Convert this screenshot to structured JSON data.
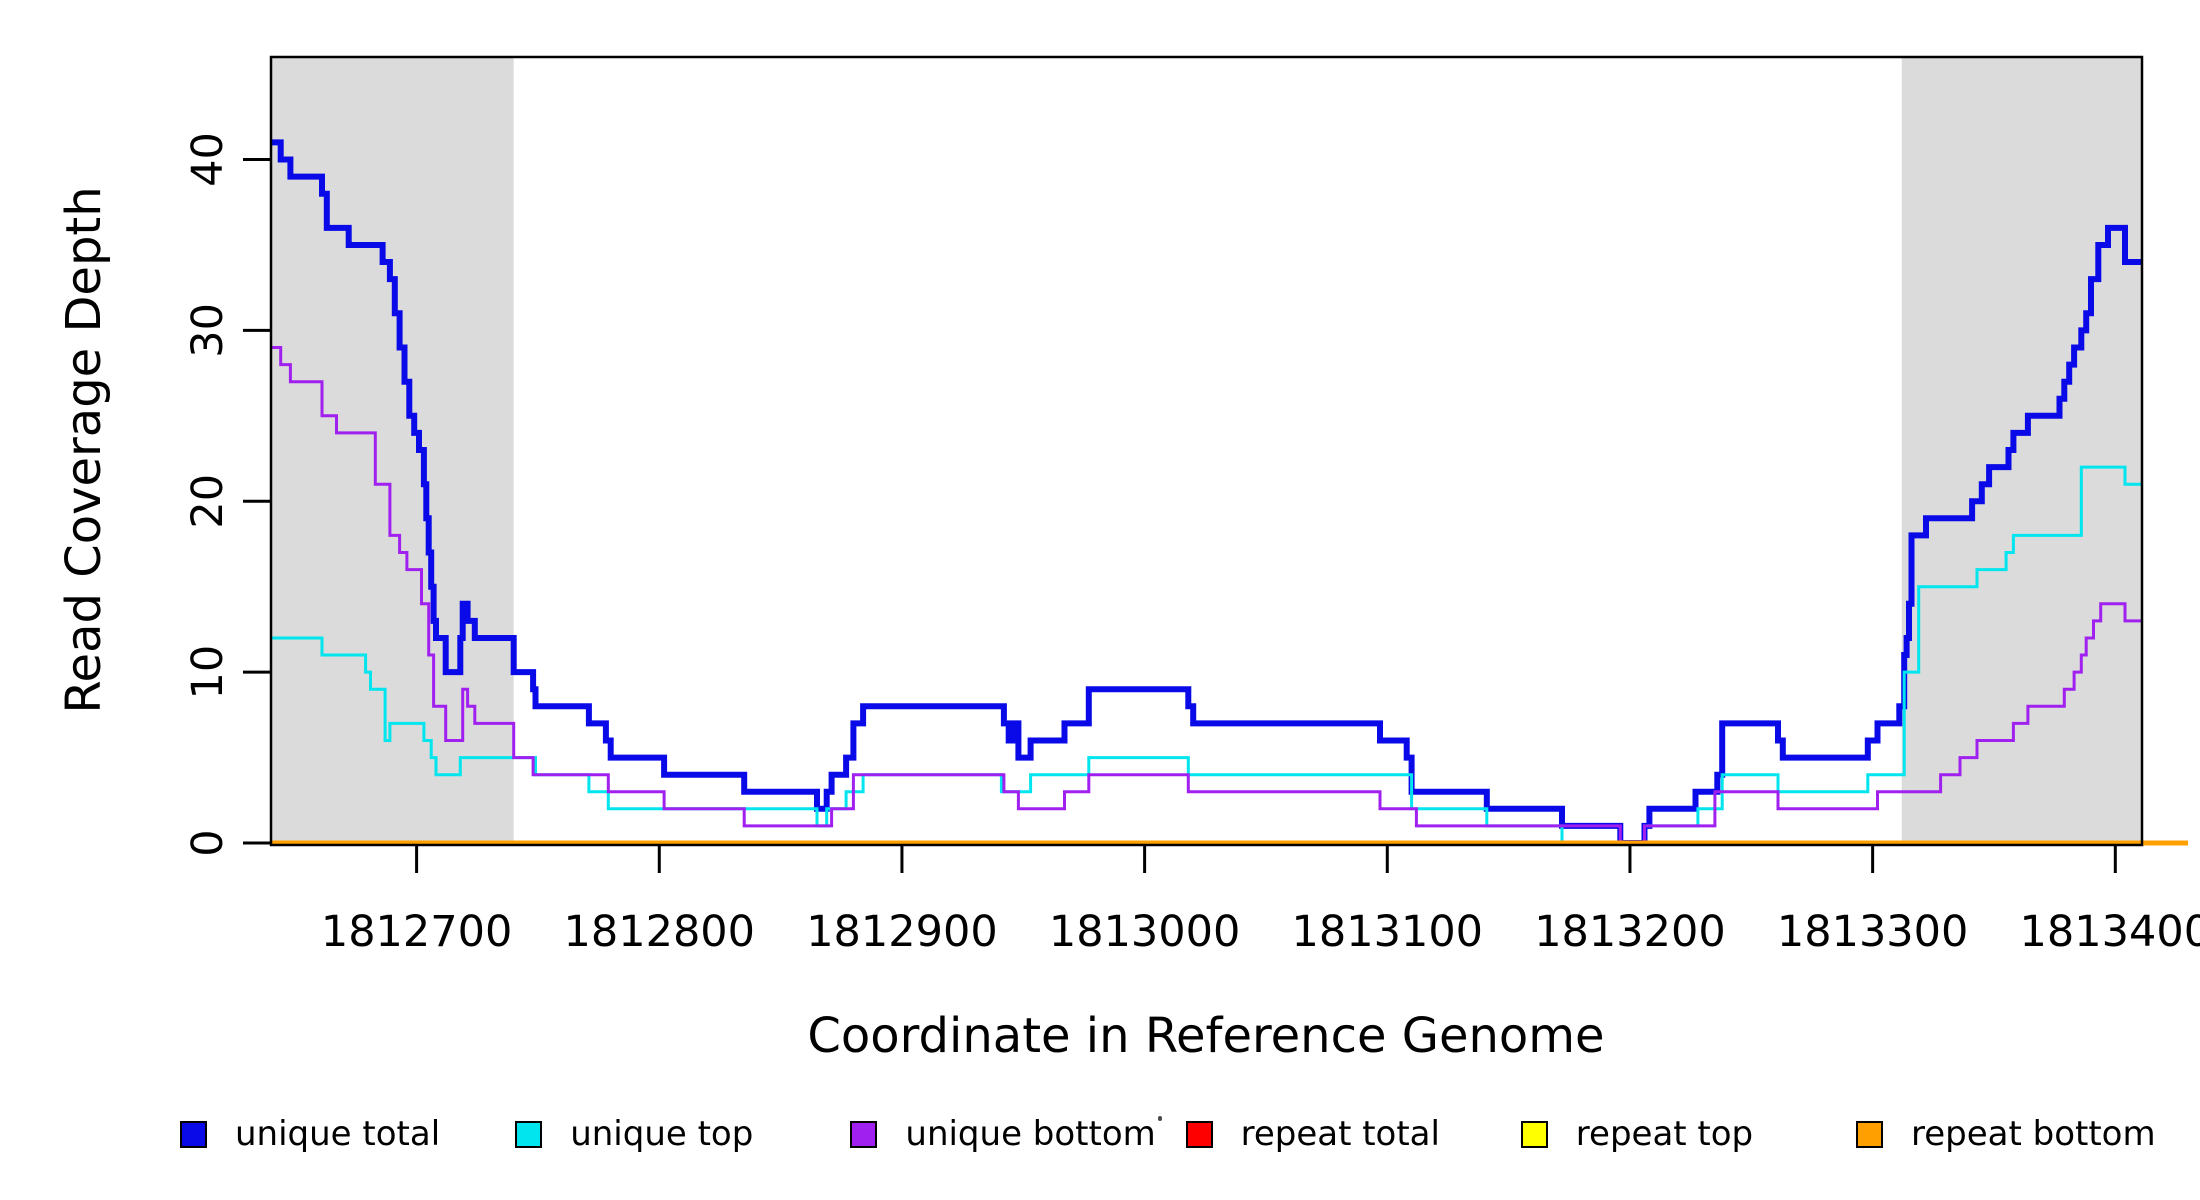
{
  "chart_data": {
    "type": "line",
    "style": "step",
    "xlabel": "Coordinate in Reference Genome",
    "ylabel": "Read Coverage Depth",
    "xlim": [
      1812640,
      1813411
    ],
    "ylim": [
      0,
      46
    ],
    "x_ticks": [
      1812700,
      1812800,
      1812900,
      1813000,
      1813100,
      1813200,
      1813300,
      1813400
    ],
    "y_ticks": [
      0,
      10,
      20,
      30,
      40
    ],
    "grid": false,
    "legend_position": "bottom",
    "background_color": "#ffffff",
    "highlight_color": "#dbdbdb",
    "highlight_regions": [
      {
        "name": "left-shaded-region",
        "x0": 1812640,
        "x1": 1812740
      },
      {
        "name": "right-shaded-region",
        "x0": 1813312,
        "x1": 1813411
      }
    ],
    "series": [
      {
        "name": "unique total",
        "color": "#0a0ae8",
        "line_width": 6,
        "points": [
          [
            1812640,
            41
          ],
          [
            1812644,
            40
          ],
          [
            1812648,
            39
          ],
          [
            1812661,
            38
          ],
          [
            1812663,
            36
          ],
          [
            1812672,
            35
          ],
          [
            1812686,
            34
          ],
          [
            1812689,
            33
          ],
          [
            1812691,
            31
          ],
          [
            1812693,
            29
          ],
          [
            1812695,
            27
          ],
          [
            1812697,
            25
          ],
          [
            1812699,
            24
          ],
          [
            1812701,
            23
          ],
          [
            1812703,
            21
          ],
          [
            1812704,
            19
          ],
          [
            1812705,
            17
          ],
          [
            1812706,
            15
          ],
          [
            1812707,
            13
          ],
          [
            1812708,
            12
          ],
          [
            1812712,
            10
          ],
          [
            1812718,
            12
          ],
          [
            1812719,
            14
          ],
          [
            1812721,
            13
          ],
          [
            1812724,
            12
          ],
          [
            1812740,
            10
          ],
          [
            1812748,
            9
          ],
          [
            1812749,
            8
          ],
          [
            1812771,
            7
          ],
          [
            1812778,
            6
          ],
          [
            1812780,
            5
          ],
          [
            1812802,
            4
          ],
          [
            1812835,
            3
          ],
          [
            1812865,
            2
          ],
          [
            1812869,
            3
          ],
          [
            1812871,
            4
          ],
          [
            1812877,
            5
          ],
          [
            1812880,
            7
          ],
          [
            1812884,
            8
          ],
          [
            1812942,
            7
          ],
          [
            1812944,
            6
          ],
          [
            1812946,
            7
          ],
          [
            1812948,
            5
          ],
          [
            1812953,
            6
          ],
          [
            1812967,
            7
          ],
          [
            1812977,
            9
          ],
          [
            1813018,
            8
          ],
          [
            1813020,
            7
          ],
          [
            1813097,
            6
          ],
          [
            1813108,
            5
          ],
          [
            1813110,
            3
          ],
          [
            1813141,
            2
          ],
          [
            1813172,
            1
          ],
          [
            1813196,
            0
          ],
          [
            1813206,
            1
          ],
          [
            1813208,
            2
          ],
          [
            1813227,
            3
          ],
          [
            1813236,
            4
          ],
          [
            1813238,
            7
          ],
          [
            1813261,
            6
          ],
          [
            1813263,
            5
          ],
          [
            1813298,
            6
          ],
          [
            1813302,
            7
          ],
          [
            1813311,
            8
          ],
          [
            1813313,
            11
          ],
          [
            1813314,
            12
          ],
          [
            1813315,
            14
          ],
          [
            1813316,
            18
          ],
          [
            1813322,
            19
          ],
          [
            1813341,
            20
          ],
          [
            1813345,
            21
          ],
          [
            1813348,
            22
          ],
          [
            1813356,
            23
          ],
          [
            1813358,
            24
          ],
          [
            1813364,
            25
          ],
          [
            1813377,
            26
          ],
          [
            1813379,
            27
          ],
          [
            1813381,
            28
          ],
          [
            1813383,
            29
          ],
          [
            1813386,
            30
          ],
          [
            1813388,
            31
          ],
          [
            1813390,
            33
          ],
          [
            1813393,
            35
          ],
          [
            1813397,
            36
          ],
          [
            1813404,
            34
          ],
          [
            1813411,
            34
          ]
        ]
      },
      {
        "name": "unique top",
        "color": "#00e5ee",
        "line_width": 3,
        "points": [
          [
            1812640,
            12
          ],
          [
            1812661,
            11
          ],
          [
            1812679,
            10
          ],
          [
            1812681,
            9
          ],
          [
            1812687,
            6
          ],
          [
            1812689,
            7
          ],
          [
            1812703,
            6
          ],
          [
            1812706,
            5
          ],
          [
            1812708,
            4
          ],
          [
            1812718,
            5
          ],
          [
            1812749,
            4
          ],
          [
            1812771,
            3
          ],
          [
            1812779,
            2
          ],
          [
            1812865,
            1
          ],
          [
            1812869,
            2
          ],
          [
            1812877,
            3
          ],
          [
            1812884,
            4
          ],
          [
            1812941,
            3
          ],
          [
            1812953,
            4
          ],
          [
            1812977,
            5
          ],
          [
            1813018,
            4
          ],
          [
            1813110,
            2
          ],
          [
            1813141,
            1
          ],
          [
            1813172,
            0
          ],
          [
            1813206,
            1
          ],
          [
            1813228,
            2
          ],
          [
            1813238,
            4
          ],
          [
            1813261,
            3
          ],
          [
            1813298,
            4
          ],
          [
            1813313,
            10
          ],
          [
            1813319,
            15
          ],
          [
            1813343,
            16
          ],
          [
            1813355,
            17
          ],
          [
            1813358,
            18
          ],
          [
            1813386,
            22
          ],
          [
            1813404,
            21
          ],
          [
            1813411,
            21
          ]
        ]
      },
      {
        "name": "unique bottom",
        "color": "#a020f0",
        "line_width": 3,
        "points": [
          [
            1812640,
            29
          ],
          [
            1812644,
            28
          ],
          [
            1812648,
            27
          ],
          [
            1812661,
            25
          ],
          [
            1812667,
            24
          ],
          [
            1812683,
            21
          ],
          [
            1812689,
            18
          ],
          [
            1812693,
            17
          ],
          [
            1812696,
            16
          ],
          [
            1812702,
            14
          ],
          [
            1812705,
            11
          ],
          [
            1812707,
            8
          ],
          [
            1812712,
            6
          ],
          [
            1812719,
            9
          ],
          [
            1812721,
            8
          ],
          [
            1812724,
            7
          ],
          [
            1812740,
            5
          ],
          [
            1812748,
            4
          ],
          [
            1812779,
            3
          ],
          [
            1812802,
            2
          ],
          [
            1812835,
            1
          ],
          [
            1812871,
            2
          ],
          [
            1812880,
            4
          ],
          [
            1812942,
            3
          ],
          [
            1812948,
            2
          ],
          [
            1812967,
            3
          ],
          [
            1812977,
            4
          ],
          [
            1813018,
            3
          ],
          [
            1813097,
            2
          ],
          [
            1813112,
            1
          ],
          [
            1813196,
            0
          ],
          [
            1813206,
            1
          ],
          [
            1813235,
            3
          ],
          [
            1813261,
            2
          ],
          [
            1813302,
            3
          ],
          [
            1813328,
            4
          ],
          [
            1813336,
            5
          ],
          [
            1813343,
            6
          ],
          [
            1813358,
            7
          ],
          [
            1813364,
            8
          ],
          [
            1813379,
            9
          ],
          [
            1813383,
            10
          ],
          [
            1813386,
            11
          ],
          [
            1813388,
            12
          ],
          [
            1813391,
            13
          ],
          [
            1813394,
            14
          ],
          [
            1813404,
            13
          ],
          [
            1813411,
            13
          ]
        ]
      },
      {
        "name": "repeat total",
        "color": "#ff0000",
        "line_width": 3,
        "points": [
          [
            1812640,
            0
          ],
          [
            1813411,
            0
          ]
        ]
      },
      {
        "name": "repeat top",
        "color": "#ffff00",
        "line_width": 3,
        "points": [
          [
            1812640,
            0
          ],
          [
            1813411,
            0
          ]
        ]
      },
      {
        "name": "repeat bottom",
        "color": "#ffa000",
        "line_width": 5,
        "points": [
          [
            1812640,
            0
          ],
          [
            1813430,
            0
          ]
        ]
      }
    ]
  },
  "legend": {
    "items": [
      {
        "label": "unique total",
        "color": "#0a0ae8"
      },
      {
        "label": "unique top",
        "color": "#00e5ee"
      },
      {
        "label": "unique bottom",
        "color": "#a020f0"
      },
      {
        "label": "repeat total",
        "color": "#ff0000"
      },
      {
        "label": "repeat top",
        "color": "#ffff00"
      },
      {
        "label": "repeat bottom",
        "color": "#ffa000"
      }
    ]
  }
}
